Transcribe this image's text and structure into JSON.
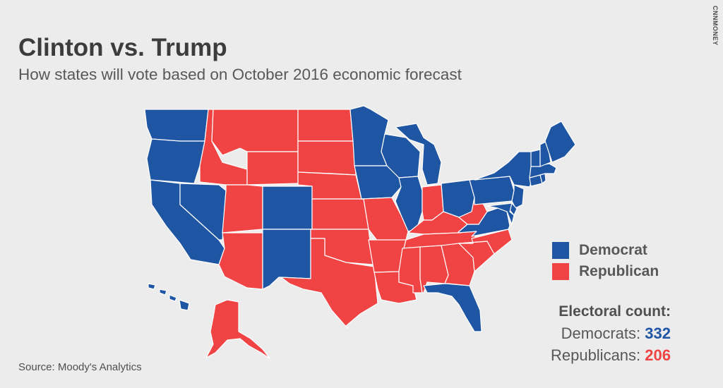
{
  "header": {
    "title": "Clinton vs. Trump",
    "subtitle": "How states will vote based on October 2016 economic forecast"
  },
  "brand": "CNNMONEY",
  "colors": {
    "democrat": "#1f56a3",
    "republican": "#ef4344",
    "background": "#ececec",
    "borders": "#ffffff"
  },
  "legend": {
    "items": [
      {
        "label": "Democrat",
        "party": "democrat"
      },
      {
        "label": "Republican",
        "party": "republican"
      }
    ]
  },
  "electoral": {
    "title": "Electoral count:",
    "democrats_label": "Democrats:",
    "democrats_count": "332",
    "republicans_label": "Republicans:",
    "republicans_count": "206"
  },
  "source": "Source: Moody's Analytics",
  "map": {
    "states": {
      "WA": "democrat",
      "OR": "democrat",
      "CA": "democrat",
      "NV": "democrat",
      "CO": "democrat",
      "NM": "democrat",
      "MN": "democrat",
      "IA": "democrat",
      "WI": "democrat",
      "IL": "democrat",
      "MI": "democrat",
      "OH": "democrat",
      "PA": "democrat",
      "NY": "democrat",
      "VA": "democrat",
      "FL": "democrat",
      "ME": "democrat",
      "VT": "democrat",
      "NH": "democrat",
      "MA": "democrat",
      "RI": "democrat",
      "CT": "democrat",
      "NJ": "democrat",
      "DE": "democrat",
      "MD": "democrat",
      "HI": "democrat",
      "ID": "republican",
      "MT": "republican",
      "WY": "republican",
      "UT": "republican",
      "AZ": "republican",
      "ND": "republican",
      "SD": "republican",
      "NE": "republican",
      "KS": "republican",
      "OK": "republican",
      "TX": "republican",
      "MO": "republican",
      "AR": "republican",
      "LA": "republican",
      "IN": "republican",
      "KY": "republican",
      "TN": "republican",
      "MS": "republican",
      "AL": "republican",
      "GA": "republican",
      "SC": "republican",
      "NC": "republican",
      "WV": "republican",
      "AK": "republican"
    }
  }
}
